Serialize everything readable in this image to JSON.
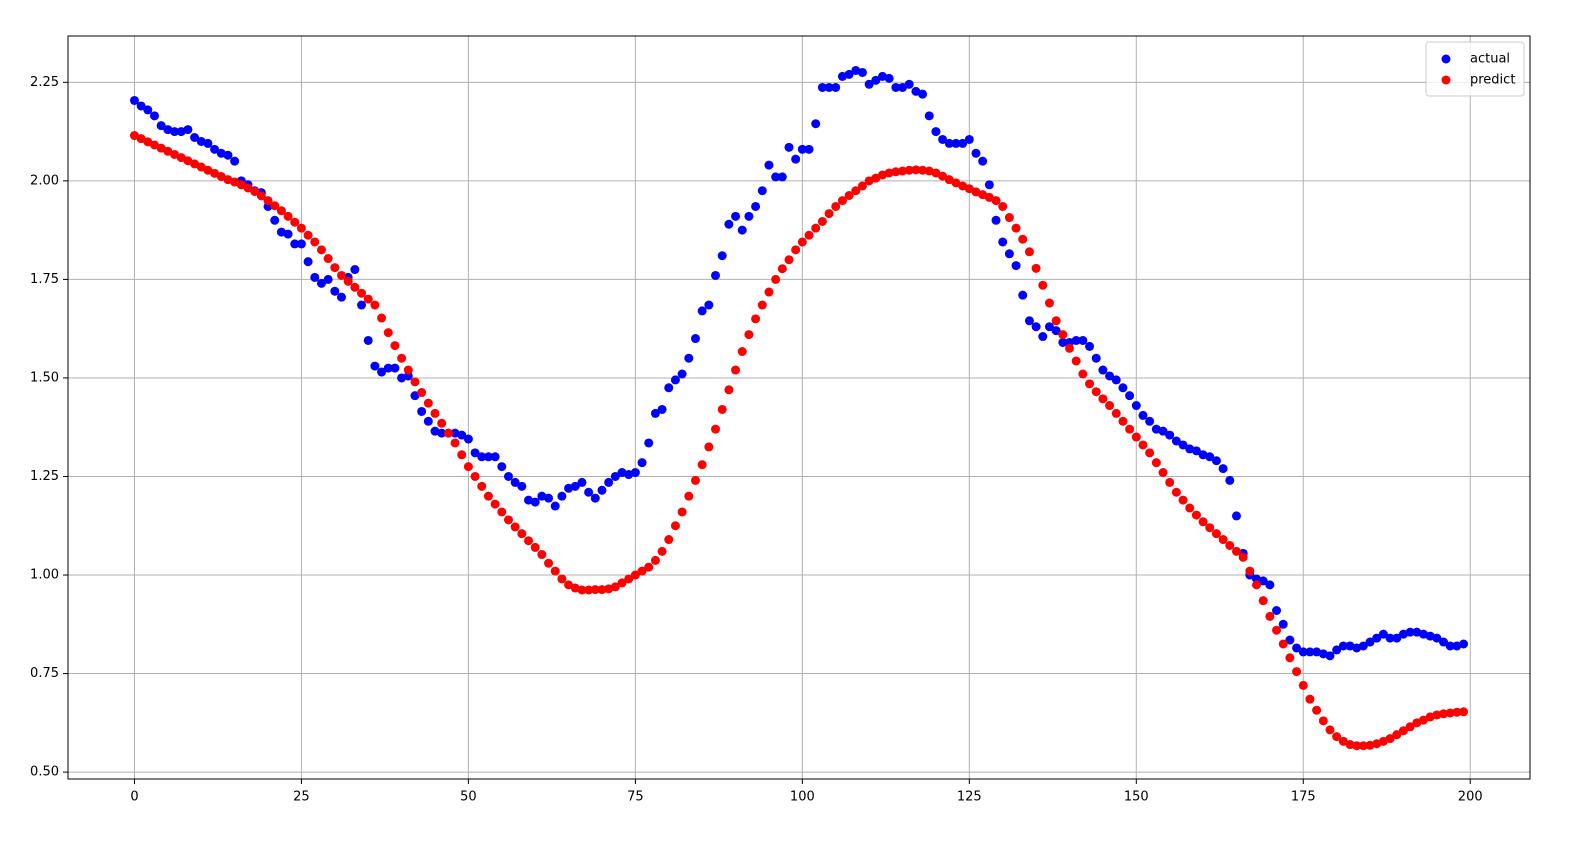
{
  "chart_data": {
    "type": "scatter",
    "x": [
      0,
      1,
      2,
      3,
      4,
      5,
      6,
      7,
      8,
      9,
      10,
      11,
      12,
      13,
      14,
      15,
      16,
      17,
      18,
      19,
      20,
      21,
      22,
      23,
      24,
      25,
      26,
      27,
      28,
      29,
      30,
      31,
      32,
      33,
      34,
      35,
      36,
      37,
      38,
      39,
      40,
      41,
      42,
      43,
      44,
      45,
      46,
      47,
      48,
      49,
      50,
      51,
      52,
      53,
      54,
      55,
      56,
      57,
      58,
      59,
      60,
      61,
      62,
      63,
      64,
      65,
      66,
      67,
      68,
      69,
      70,
      71,
      72,
      73,
      74,
      75,
      76,
      77,
      78,
      79,
      80,
      81,
      82,
      83,
      84,
      85,
      86,
      87,
      88,
      89,
      90,
      91,
      92,
      93,
      94,
      95,
      96,
      97,
      98,
      99,
      100,
      101,
      102,
      103,
      104,
      105,
      106,
      107,
      108,
      109,
      110,
      111,
      112,
      113,
      114,
      115,
      116,
      117,
      118,
      119,
      120,
      121,
      122,
      123,
      124,
      125,
      126,
      127,
      128,
      129,
      130,
      131,
      132,
      133,
      134,
      135,
      136,
      137,
      138,
      139,
      140,
      141,
      142,
      143,
      144,
      145,
      146,
      147,
      148,
      149,
      150,
      151,
      152,
      153,
      154,
      155,
      156,
      157,
      158,
      159,
      160,
      161,
      162,
      163,
      164,
      165,
      166,
      167,
      168,
      169,
      170,
      171,
      172,
      173,
      174,
      175,
      176,
      177,
      178,
      179,
      180,
      181,
      182,
      183,
      184,
      185,
      186,
      187,
      188,
      189,
      190,
      191,
      192,
      193,
      194,
      195,
      196,
      197,
      198,
      199
    ],
    "series": [
      {
        "name": "actual",
        "color": "#0000ff",
        "values": [
          2.204,
          2.19,
          2.18,
          2.165,
          2.14,
          2.13,
          2.125,
          2.125,
          2.13,
          2.11,
          2.1,
          2.095,
          2.08,
          2.07,
          2.065,
          2.05,
          2.0,
          1.99,
          1.975,
          1.97,
          1.935,
          1.9,
          1.87,
          1.865,
          1.84,
          1.84,
          1.795,
          1.755,
          1.74,
          1.75,
          1.72,
          1.705,
          1.755,
          1.775,
          1.685,
          1.595,
          1.53,
          1.515,
          1.525,
          1.525,
          1.5,
          1.505,
          1.455,
          1.415,
          1.39,
          1.365,
          1.36,
          1.36,
          1.36,
          1.355,
          1.345,
          1.31,
          1.3,
          1.3,
          1.3,
          1.275,
          1.25,
          1.235,
          1.225,
          1.19,
          1.185,
          1.2,
          1.195,
          1.175,
          1.2,
          1.22,
          1.225,
          1.235,
          1.21,
          1.195,
          1.215,
          1.235,
          1.25,
          1.26,
          1.255,
          1.26,
          1.285,
          1.335,
          1.41,
          1.42,
          1.475,
          1.495,
          1.51,
          1.55,
          1.6,
          1.67,
          1.685,
          1.76,
          1.81,
          1.89,
          1.91,
          1.875,
          1.91,
          1.935,
          1.975,
          2.04,
          2.01,
          2.01,
          2.085,
          2.055,
          2.08,
          2.08,
          2.145,
          2.237,
          2.237,
          2.237,
          2.265,
          2.27,
          2.28,
          2.275,
          2.245,
          2.255,
          2.265,
          2.26,
          2.237,
          2.237,
          2.245,
          2.227,
          2.22,
          2.165,
          2.125,
          2.105,
          2.095,
          2.095,
          2.095,
          2.105,
          2.07,
          2.05,
          1.99,
          1.9,
          1.845,
          1.815,
          1.785,
          1.71,
          1.645,
          1.63,
          1.605,
          1.63,
          1.62,
          1.59,
          1.59,
          1.595,
          1.595,
          1.58,
          1.55,
          1.52,
          1.505,
          1.495,
          1.475,
          1.455,
          1.43,
          1.405,
          1.39,
          1.37,
          1.365,
          1.355,
          1.34,
          1.33,
          1.32,
          1.315,
          1.305,
          1.3,
          1.29,
          1.27,
          1.24,
          1.15,
          1.055,
          1.0,
          0.99,
          0.985,
          0.975,
          0.91,
          0.875,
          0.835,
          0.815,
          0.805,
          0.805,
          0.805,
          0.8,
          0.795,
          0.81,
          0.82,
          0.82,
          0.815,
          0.82,
          0.83,
          0.84,
          0.85,
          0.84,
          0.84,
          0.85,
          0.855,
          0.855,
          0.85,
          0.845,
          0.84,
          0.83,
          0.82,
          0.82,
          0.825
        ]
      },
      {
        "name": "predict",
        "color": "#ff0000",
        "values": [
          2.115,
          2.107,
          2.099,
          2.091,
          2.083,
          2.075,
          2.067,
          2.059,
          2.051,
          2.043,
          2.035,
          2.027,
          2.019,
          2.011,
          2.003,
          1.997,
          1.99,
          1.982,
          1.973,
          1.962,
          1.95,
          1.937,
          1.924,
          1.91,
          1.895,
          1.88,
          1.862,
          1.845,
          1.825,
          1.803,
          1.78,
          1.76,
          1.745,
          1.73,
          1.715,
          1.7,
          1.685,
          1.652,
          1.615,
          1.582,
          1.55,
          1.52,
          1.49,
          1.463,
          1.436,
          1.41,
          1.385,
          1.36,
          1.335,
          1.305,
          1.275,
          1.25,
          1.225,
          1.2,
          1.18,
          1.16,
          1.14,
          1.122,
          1.105,
          1.087,
          1.07,
          1.052,
          1.03,
          1.01,
          0.99,
          0.975,
          0.967,
          0.962,
          0.962,
          0.963,
          0.963,
          0.965,
          0.97,
          0.98,
          0.99,
          1.0,
          1.01,
          1.02,
          1.037,
          1.06,
          1.09,
          1.125,
          1.16,
          1.2,
          1.24,
          1.28,
          1.325,
          1.37,
          1.42,
          1.47,
          1.52,
          1.567,
          1.61,
          1.65,
          1.685,
          1.718,
          1.75,
          1.777,
          1.8,
          1.825,
          1.845,
          1.862,
          1.88,
          1.897,
          1.917,
          1.935,
          1.95,
          1.963,
          1.975,
          1.987,
          2.0,
          2.007,
          2.015,
          2.02,
          2.023,
          2.025,
          2.027,
          2.028,
          2.027,
          2.025,
          2.02,
          2.012,
          2.003,
          1.995,
          1.987,
          1.98,
          1.972,
          1.965,
          1.958,
          1.95,
          1.935,
          1.907,
          1.88,
          1.852,
          1.82,
          1.778,
          1.735,
          1.69,
          1.645,
          1.61,
          1.575,
          1.543,
          1.51,
          1.485,
          1.465,
          1.447,
          1.43,
          1.41,
          1.39,
          1.37,
          1.35,
          1.33,
          1.31,
          1.285,
          1.26,
          1.235,
          1.21,
          1.19,
          1.17,
          1.152,
          1.135,
          1.12,
          1.105,
          1.09,
          1.075,
          1.06,
          1.045,
          1.01,
          0.975,
          0.935,
          0.895,
          0.86,
          0.825,
          0.79,
          0.755,
          0.72,
          0.685,
          0.657,
          0.63,
          0.607,
          0.59,
          0.578,
          0.57,
          0.567,
          0.567,
          0.568,
          0.572,
          0.578,
          0.585,
          0.595,
          0.605,
          0.615,
          0.625,
          0.632,
          0.64,
          0.645,
          0.648,
          0.65,
          0.652,
          0.653
        ]
      }
    ],
    "xlim": [
      -9.95,
      208.95
    ],
    "xticks": [
      0,
      25,
      50,
      75,
      100,
      125,
      150,
      175,
      200
    ],
    "ylim": [
      0.4825,
      2.3675
    ],
    "yticks": [
      {
        "value": 0.5,
        "label": "0.50"
      },
      0.75,
      {
        "value": 1,
        "label": "1.00"
      },
      1.25,
      {
        "value": 1.5,
        "label": "1.50"
      },
      1.75,
      {
        "value": 2,
        "label": "2.00"
      },
      2.25
    ],
    "grid": true,
    "legend": "upper right"
  }
}
